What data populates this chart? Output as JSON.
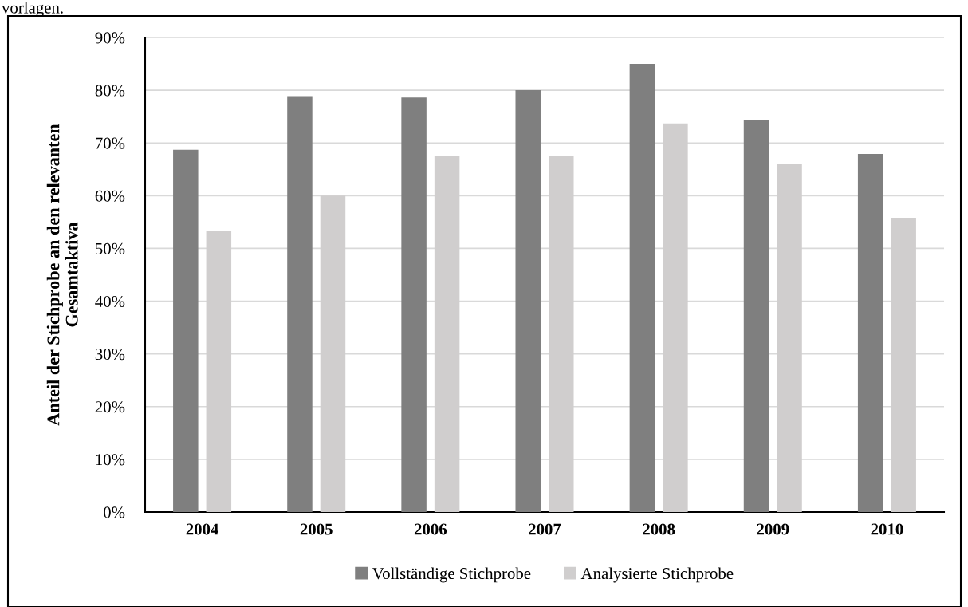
{
  "chart_data": {
    "type": "bar",
    "ylabel": "Anteil der Stichprobe an den relevanten\nGesamtaktiva",
    "annotations": [
      "vorlagen."
    ],
    "categories": [
      "2004",
      "2005",
      "2006",
      "2007",
      "2008",
      "2009",
      "2010"
    ],
    "series": [
      {
        "name": "Vollständige Stichprobe",
        "color": "#7f7f7f",
        "values": [
          68.7,
          78.9,
          78.6,
          80.0,
          85.0,
          74.4,
          67.9
        ]
      },
      {
        "name": "Analysierte Stichprobe",
        "color": "#d0cece",
        "values": [
          53.3,
          60.0,
          67.5,
          67.5,
          73.7,
          66.0,
          55.8
        ]
      }
    ],
    "ylim": [
      0,
      90
    ],
    "yticks": [
      {
        "value": 0,
        "label": "0%"
      },
      {
        "value": 10,
        "label": "10%"
      },
      {
        "value": 20,
        "label": "20%"
      },
      {
        "value": 30,
        "label": "30%"
      },
      {
        "value": 40,
        "label": "40%"
      },
      {
        "value": 50,
        "label": "50%"
      },
      {
        "value": 60,
        "label": "60%"
      },
      {
        "value": 70,
        "label": "70%"
      },
      {
        "value": 80,
        "label": "80%"
      },
      {
        "value": 90,
        "label": "90%"
      }
    ],
    "grid": "y",
    "legend": "bottom"
  }
}
